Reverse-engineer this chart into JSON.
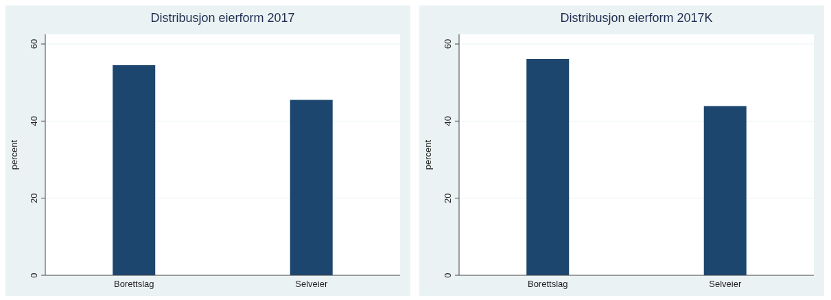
{
  "chart_data": [
    {
      "type": "bar",
      "title": "Distribusjon eierform 2017",
      "ylabel": "percent",
      "categories": [
        "Borettslag",
        "Selveier"
      ],
      "values": [
        54.5,
        45.5
      ],
      "color": "#1c466e",
      "ylim": [
        0,
        62.5
      ],
      "yticks": [
        0,
        20,
        40,
        60
      ],
      "grid": "y"
    },
    {
      "type": "bar",
      "title": "Distribusjon eierform 2017K",
      "ylabel": "percent",
      "categories": [
        "Borettslag",
        "Selveier"
      ],
      "values": [
        56.1,
        43.9
      ],
      "color": "#1c466e",
      "ylim": [
        0,
        62.5
      ],
      "yticks": [
        0,
        20,
        40,
        60
      ],
      "grid": "y"
    }
  ]
}
